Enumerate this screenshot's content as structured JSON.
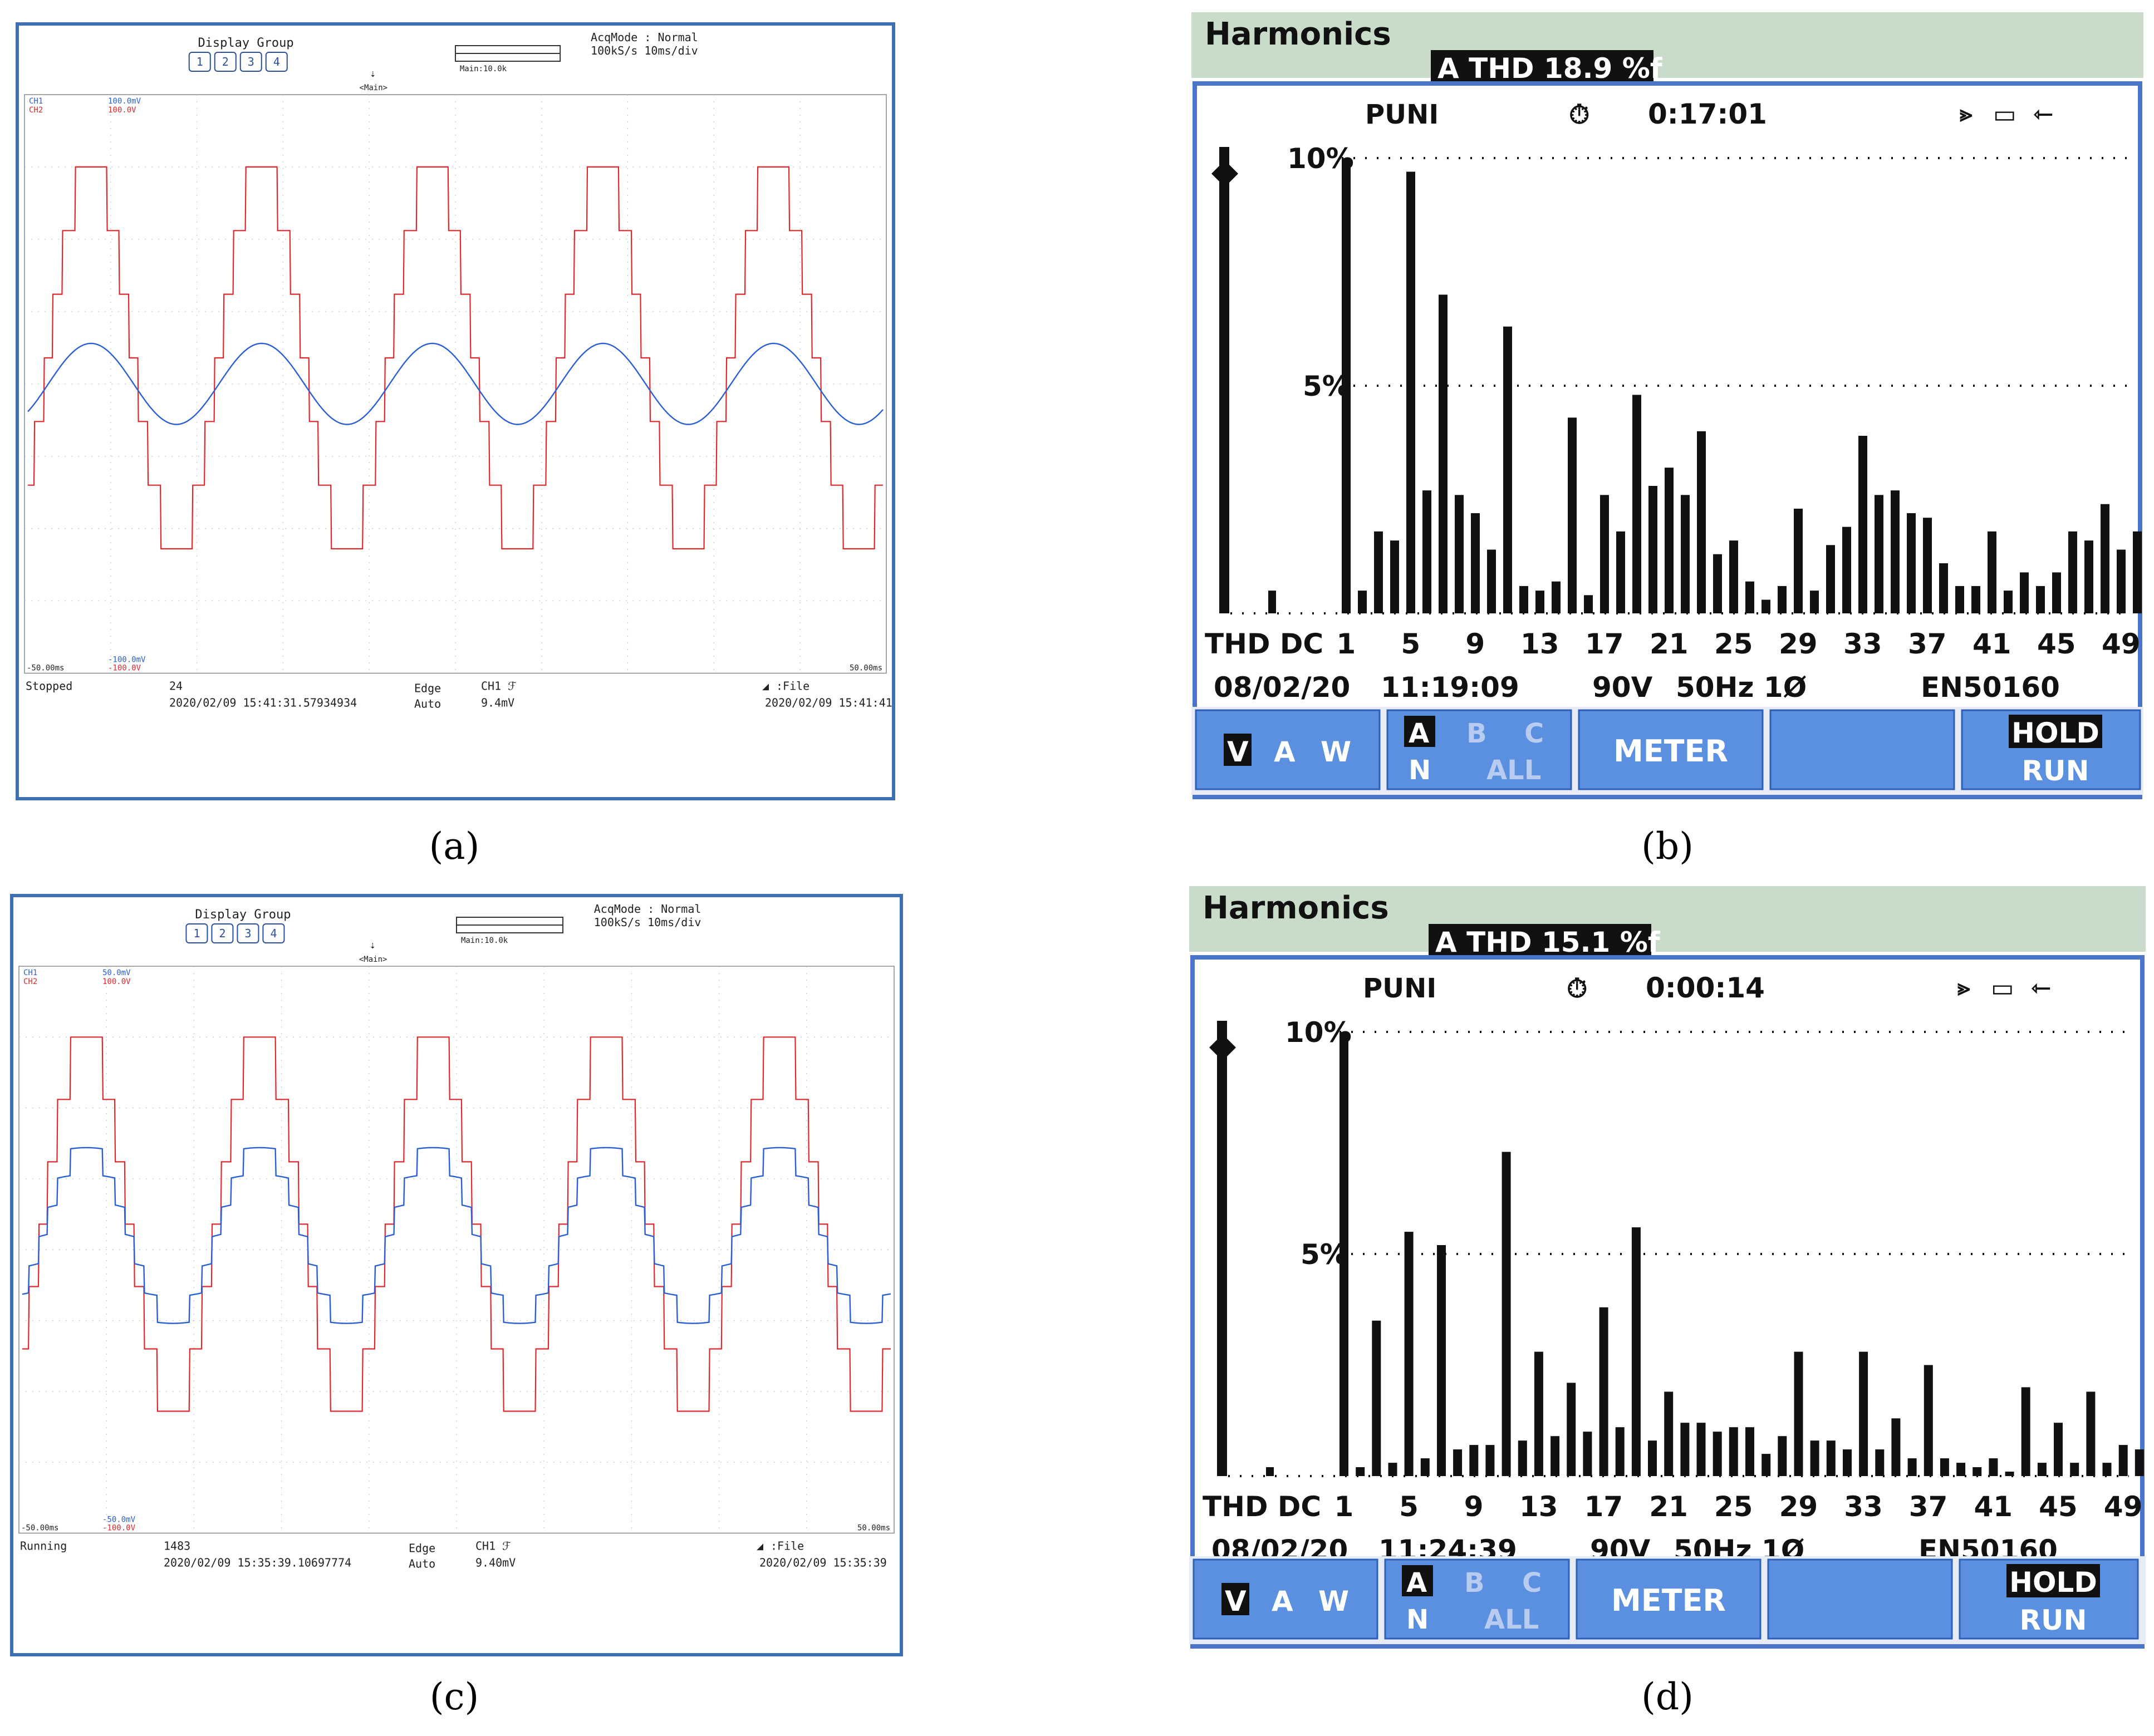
{
  "captions": [
    "(a)",
    "(b)",
    "(c)",
    "(d)"
  ],
  "scopes": [
    {
      "display_group_label": "Display Group",
      "group_buttons": [
        "1",
        "2",
        "3",
        "4"
      ],
      "main_label": "Main:10.0k",
      "acq_line1": "AcqMode : Normal",
      "acq_line2": "100kS/s   10ms/div",
      "marker_label": "<Main>",
      "ch1_label": "CH1",
      "ch1_scale": "100.0mV",
      "ch2_label": "CH2",
      "ch2_scale": "100.0V",
      "bottom_ch1": "-100.0mV",
      "bottom_ch2": "-100.0V",
      "x_left": "-50.00ms",
      "x_right": "50.00ms",
      "status": "Stopped",
      "count": "24",
      "start_time": "2020/02/09 15:41:31.57934934",
      "trigger": "Edge",
      "trigger_mode": "Auto",
      "trigger_ch": "CH1 ℱ",
      "trigger_level": "9.4mV",
      "file": "File",
      "end_time": "2020/02/09 15:41:41",
      "ch1_color": "#2a5fd4",
      "ch2_color": "#e0282c",
      "ch1_shape": "smooth"
    },
    {
      "display_group_label": "Display Group",
      "group_buttons": [
        "1",
        "2",
        "3",
        "4"
      ],
      "main_label": "Main:10.0k",
      "acq_line1": "AcqMode : Normal",
      "acq_line2": "100kS/s   10ms/div",
      "marker_label": "<Main>",
      "ch1_label": "CH1",
      "ch1_scale": "50.0mV",
      "ch2_label": "CH2",
      "ch2_scale": "100.0V",
      "bottom_ch1": "-50.0mV",
      "bottom_ch2": "-100.0V",
      "x_left": "-50.00ms",
      "x_right": "50.00ms",
      "status": "Running",
      "count": "1483",
      "start_time": "2020/02/09 15:35:39.10697774",
      "trigger": "Edge",
      "trigger_mode": "Auto",
      "trigger_ch": "CH1 ℱ",
      "trigger_level": "9.40mV",
      "file": "File",
      "end_time": "2020/02/09 15:35:39",
      "ch1_color": "#2a5fd4",
      "ch2_color": "#e0282c",
      "ch1_shape": "stepped"
    }
  ],
  "flukes": [
    {
      "title": "Harmonics",
      "thd_badge": "A THD 18.9 %f",
      "mode": "PUNI",
      "timer": "0:17:01",
      "y_top": "10%",
      "y_mid": "5%",
      "x_prefix": "THD DC",
      "x_labels": [
        "1",
        "5",
        "9",
        "13",
        "17",
        "21",
        "25",
        "29",
        "33",
        "37",
        "41",
        "45",
        "49"
      ],
      "status_date": "08/02/20",
      "status_time": "11:19:09",
      "status_volts": "90V",
      "status_freq": "50Hz 1Ø",
      "status_std": "EN50160",
      "btn_vaw": [
        "V",
        "A",
        "W"
      ],
      "btn_abc": [
        "A",
        "B",
        "C"
      ],
      "btn_nall": [
        "N",
        "ALL"
      ],
      "btn_meter": "METER",
      "btn_hold": "HOLD",
      "btn_run": "RUN"
    },
    {
      "title": "Harmonics",
      "thd_badge": "A THD 15.1 %f",
      "mode": "PUNI",
      "timer": "0:00:14",
      "y_top": "10%",
      "y_mid": "5%",
      "x_prefix": "THD DC",
      "x_labels": [
        "1",
        "5",
        "9",
        "13",
        "17",
        "21",
        "25",
        "29",
        "33",
        "37",
        "41",
        "45",
        "49"
      ],
      "status_date": "08/02/20",
      "status_time": "11:24:39",
      "status_volts": "90V",
      "status_freq": "50Hz 1Ø",
      "status_std": "EN50160",
      "btn_vaw": [
        "V",
        "A",
        "W"
      ],
      "btn_abc": [
        "A",
        "B",
        "C"
      ],
      "btn_nall": [
        "N",
        "ALL"
      ],
      "btn_meter": "METER",
      "btn_hold": "HOLD",
      "btn_run": "RUN"
    }
  ],
  "chart_data": [
    {
      "type": "line",
      "panel": "(a)",
      "x_range_ms": [
        -50,
        50
      ],
      "series": [
        {
          "name": "CH1",
          "description_units": "100.0mV/div",
          "shape": "sinusoid",
          "period_ms": 20,
          "cycles": 5
        },
        {
          "name": "CH2",
          "description_units": "100.0V/div",
          "shape": "multilevel staircase",
          "period_ms": 20,
          "cycles": 5
        }
      ]
    },
    {
      "type": "bar",
      "panel": "(b)",
      "ylim": [
        0,
        10
      ],
      "ylabel_ticks": [
        "5%",
        "10%"
      ],
      "thd_percent": 18.9,
      "categories": [
        "THD",
        "DC",
        "1",
        "2",
        "3",
        "4",
        "5",
        "6",
        "7",
        "8",
        "9",
        "10",
        "11",
        "12",
        "13",
        "14",
        "15",
        "16",
        "17",
        "18",
        "19",
        "20",
        "21",
        "22",
        "23",
        "24",
        "25",
        "26",
        "27",
        "28",
        "29",
        "30",
        "31",
        "32",
        "33",
        "34",
        "35",
        "36",
        "37",
        "38",
        "39",
        "40",
        "41",
        "42",
        "43",
        "44",
        "45",
        "46",
        "47",
        "48",
        "49",
        "50"
      ],
      "values": [
        10,
        0.5,
        10,
        0.5,
        1.8,
        1.6,
        9.7,
        2.7,
        7.0,
        2.6,
        2.2,
        1.4,
        6.3,
        0.6,
        0.5,
        0.7,
        4.3,
        0.4,
        2.6,
        1.8,
        4.8,
        2.8,
        3.2,
        2.6,
        4.0,
        1.3,
        1.6,
        0.7,
        0.3,
        0.6,
        2.3,
        0.5,
        1.5,
        1.9,
        3.9,
        2.6,
        2.7,
        2.2,
        2.1,
        1.1,
        0.6,
        0.6,
        1.8,
        0.5,
        0.9,
        0.6,
        0.9,
        1.8,
        1.6,
        2.4,
        1.4,
        1.8
      ]
    },
    {
      "type": "line",
      "panel": "(c)",
      "x_range_ms": [
        -50,
        50
      ],
      "series": [
        {
          "name": "CH1",
          "description_units": "50.0mV/div",
          "shape": "stepped sinusoid",
          "period_ms": 20,
          "cycles": 5
        },
        {
          "name": "CH2",
          "description_units": "100.0V/div",
          "shape": "multilevel staircase",
          "period_ms": 20,
          "cycles": 5
        }
      ]
    },
    {
      "type": "bar",
      "panel": "(d)",
      "ylim": [
        0,
        10
      ],
      "ylabel_ticks": [
        "5%",
        "10%"
      ],
      "thd_percent": 15.1,
      "categories": [
        "THD",
        "DC",
        "1",
        "2",
        "3",
        "4",
        "5",
        "6",
        "7",
        "8",
        "9",
        "10",
        "11",
        "12",
        "13",
        "14",
        "15",
        "16",
        "17",
        "18",
        "19",
        "20",
        "21",
        "22",
        "23",
        "24",
        "25",
        "26",
        "27",
        "28",
        "29",
        "30",
        "31",
        "32",
        "33",
        "34",
        "35",
        "36",
        "37",
        "38",
        "39",
        "40",
        "41",
        "42",
        "43",
        "44",
        "45",
        "46",
        "47",
        "48",
        "49",
        "50"
      ],
      "values": [
        10,
        0.2,
        10,
        0.2,
        3.5,
        0.3,
        5.5,
        0.4,
        5.2,
        0.6,
        0.7,
        0.7,
        7.3,
        0.8,
        2.8,
        0.9,
        2.1,
        1.0,
        3.8,
        1.1,
        5.6,
        0.8,
        1.9,
        1.2,
        1.2,
        1.0,
        1.1,
        1.1,
        0.5,
        0.9,
        2.8,
        0.8,
        0.8,
        0.6,
        2.8,
        0.6,
        1.3,
        0.4,
        2.5,
        0.4,
        0.3,
        0.2,
        0.4,
        0.1,
        2.0,
        0.3,
        1.2,
        0.3,
        1.9,
        0.3,
        0.7,
        0.6
      ]
    }
  ]
}
